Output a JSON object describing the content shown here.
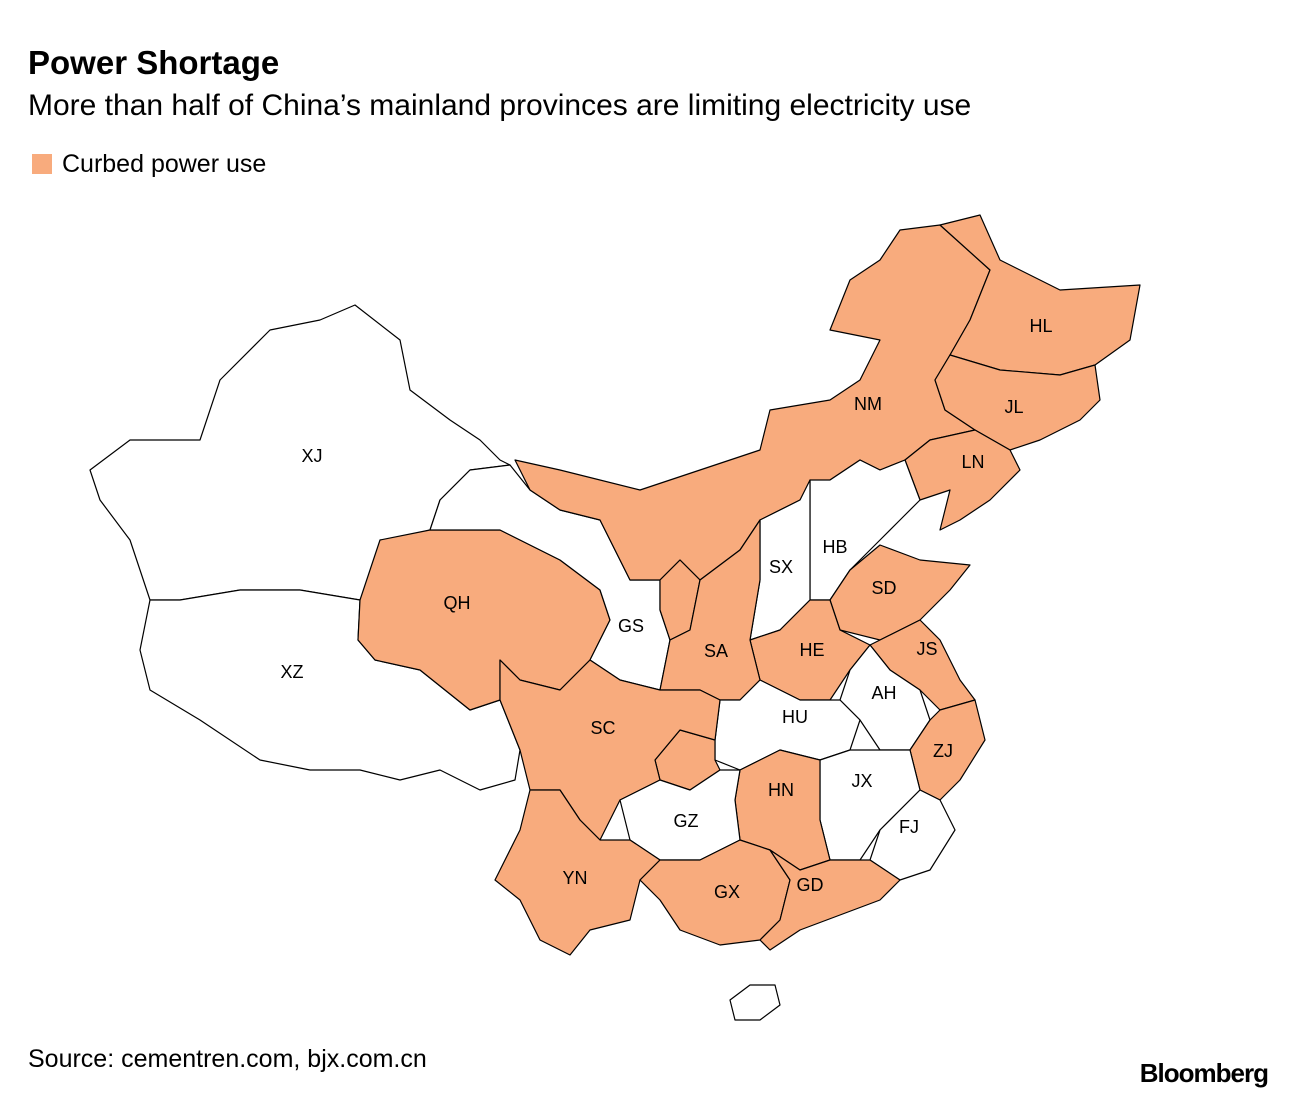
{
  "header": {
    "title": "Power Shortage",
    "subtitle": "More than half of China’s mainland provinces are limiting electricity use"
  },
  "legend": {
    "label": "Curbed power use",
    "color": "#f8ab7d"
  },
  "provinces": [
    {
      "label": "XJ",
      "curbed": false
    },
    {
      "label": "XZ",
      "curbed": false
    },
    {
      "label": "QH",
      "curbed": true
    },
    {
      "label": "GS",
      "curbed": false
    },
    {
      "label": "NM",
      "curbed": true
    },
    {
      "label": null,
      "curbed": true
    },
    {
      "label": "HL",
      "curbed": true
    },
    {
      "label": "JL",
      "curbed": true
    },
    {
      "label": "LN",
      "curbed": true
    },
    {
      "label": "HB",
      "curbed": false
    },
    {
      "label": "SX",
      "curbed": false
    },
    {
      "label": "SD",
      "curbed": true
    },
    {
      "label": "HE",
      "curbed": true
    },
    {
      "label": "SA",
      "curbed": true
    },
    {
      "label": "JS",
      "curbed": true
    },
    {
      "label": "AH",
      "curbed": false
    },
    {
      "label": "HU",
      "curbed": false
    },
    {
      "label": null,
      "curbed": true
    },
    {
      "label": "SC",
      "curbed": true
    },
    {
      "label": "ZJ",
      "curbed": true
    },
    {
      "label": "JX",
      "curbed": false
    },
    {
      "label": "HN",
      "curbed": true
    },
    {
      "label": "GZ",
      "curbed": false
    },
    {
      "label": "FJ",
      "curbed": false
    },
    {
      "label": "YN",
      "curbed": true
    },
    {
      "label": "GX",
      "curbed": true
    },
    {
      "label": "GD",
      "curbed": true
    },
    {
      "label": null,
      "curbed": false
    }
  ],
  "footer": {
    "source": "Source: cementren.com, bjx.com.cn",
    "brand": "Bloomberg"
  }
}
